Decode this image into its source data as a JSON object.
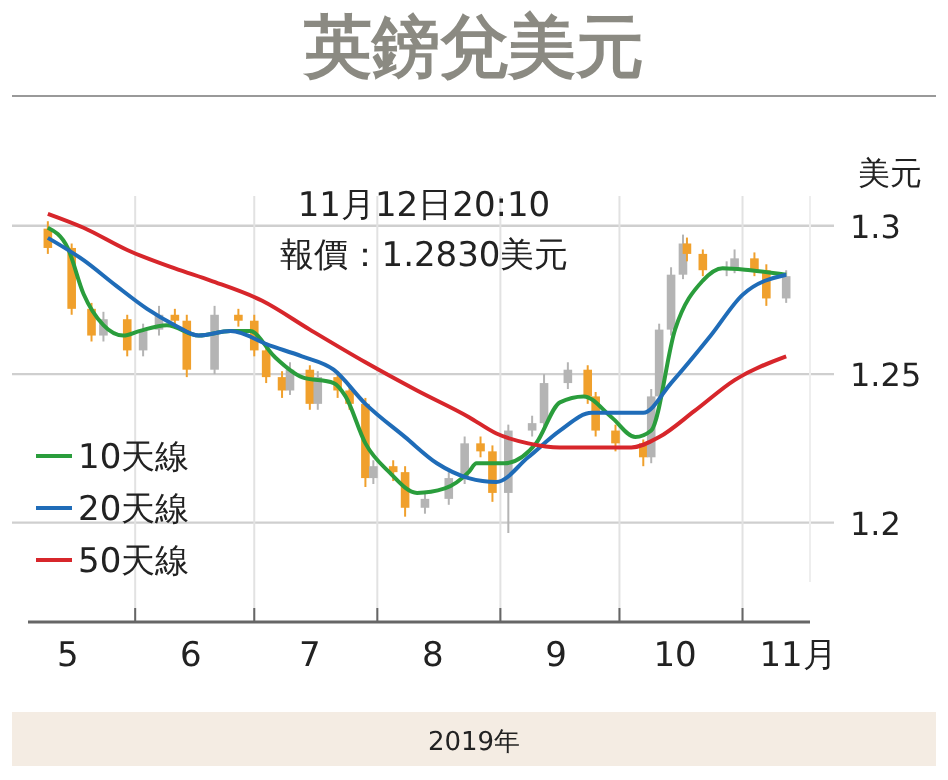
{
  "chart_data": {
    "type": "candlestick",
    "title": "英鎊兌美元",
    "ylabel": "美元",
    "xlabel": "2019年",
    "annotations": [
      "11月12日20:10",
      "報價：1.2830美元"
    ],
    "x": [
      "2019-05-10",
      "2019-05-16",
      "2019-05-21",
      "2019-05-24",
      "2019-05-30",
      "2019-06-03",
      "2019-06-07",
      "2019-06-11",
      "2019-06-14",
      "2019-06-21",
      "2019-06-27",
      "2019-07-01",
      "2019-07-04",
      "2019-07-08",
      "2019-07-10",
      "2019-07-15",
      "2019-07-17",
      "2019-07-22",
      "2019-07-25",
      "2019-07-29",
      "2019-07-31",
      "2019-08-05",
      "2019-08-08",
      "2019-08-13",
      "2019-08-19",
      "2019-08-23",
      "2019-08-27",
      "2019-08-30",
      "2019-09-03",
      "2019-09-09",
      "2019-09-12",
      "2019-09-18",
      "2019-09-23",
      "2019-09-25",
      "2019-09-30",
      "2019-10-07",
      "2019-10-09",
      "2019-10-11",
      "2019-10-14",
      "2019-10-17",
      "2019-10-18",
      "2019-10-22",
      "2019-10-28",
      "2019-10-30",
      "2019-11-04",
      "2019-11-07",
      "2019-11-12"
    ],
    "ohlc": [
      [
        1.299,
        1.3015,
        1.2905,
        1.2925
      ],
      [
        1.2925,
        1.294,
        1.27,
        1.272
      ],
      [
        1.272,
        1.274,
        1.261,
        1.263
      ],
      [
        1.263,
        1.271,
        1.261,
        1.2685
      ],
      [
        1.2685,
        1.27,
        1.256,
        1.258
      ],
      [
        1.258,
        1.267,
        1.256,
        1.265
      ],
      [
        1.265,
        1.273,
        1.263,
        1.27
      ],
      [
        1.27,
        1.272,
        1.266,
        1.268
      ],
      [
        1.268,
        1.27,
        1.249,
        1.2515
      ],
      [
        1.2515,
        1.273,
        1.25,
        1.27
      ],
      [
        1.27,
        1.272,
        1.266,
        1.268
      ],
      [
        1.268,
        1.27,
        1.256,
        1.258
      ],
      [
        1.258,
        1.26,
        1.247,
        1.249
      ],
      [
        1.249,
        1.251,
        1.242,
        1.2445
      ],
      [
        1.2445,
        1.254,
        1.243,
        1.2515
      ],
      [
        1.2515,
        1.253,
        1.238,
        1.24
      ],
      [
        1.24,
        1.251,
        1.238,
        1.249
      ],
      [
        1.249,
        1.251,
        1.242,
        1.2445
      ],
      [
        1.2445,
        1.246,
        1.238,
        1.24
      ],
      [
        1.24,
        1.242,
        1.212,
        1.215
      ],
      [
        1.215,
        1.221,
        1.213,
        1.219
      ],
      [
        1.219,
        1.221,
        1.214,
        1.217
      ],
      [
        1.217,
        1.219,
        1.202,
        1.205
      ],
      [
        1.205,
        1.21,
        1.203,
        1.208
      ],
      [
        1.208,
        1.217,
        1.206,
        1.215
      ],
      [
        1.215,
        1.229,
        1.213,
        1.2267
      ],
      [
        1.2267,
        1.229,
        1.222,
        1.224
      ],
      [
        1.224,
        1.226,
        1.207,
        1.21
      ],
      [
        1.21,
        1.233,
        1.1965,
        1.231
      ],
      [
        1.231,
        1.236,
        1.229,
        1.2335
      ],
      [
        1.2335,
        1.25,
        1.232,
        1.247
      ],
      [
        1.247,
        1.254,
        1.245,
        1.2515
      ],
      [
        1.2515,
        1.253,
        1.24,
        1.2425
      ],
      [
        1.2425,
        1.244,
        1.229,
        1.231
      ],
      [
        1.231,
        1.233,
        1.224,
        1.2267
      ],
      [
        1.2267,
        1.228,
        1.219,
        1.222
      ],
      [
        1.222,
        1.245,
        1.22,
        1.2425
      ],
      [
        1.2425,
        1.267,
        1.241,
        1.265
      ],
      [
        1.265,
        1.286,
        1.263,
        1.2835
      ],
      [
        1.2835,
        1.297,
        1.282,
        1.294
      ],
      [
        1.294,
        1.296,
        1.288,
        1.2905
      ],
      [
        1.2905,
        1.292,
        1.283,
        1.285
      ],
      [
        1.285,
        1.288,
        1.283,
        1.2857
      ],
      [
        1.2857,
        1.292,
        1.284,
        1.289
      ],
      [
        1.289,
        1.291,
        1.283,
        1.285
      ],
      [
        1.285,
        1.287,
        1.273,
        1.2755
      ],
      [
        1.2755,
        1.285,
        1.274,
        1.283
      ]
    ],
    "colors": [
      "#f0a02c",
      "#f0a02c",
      "#f0a02c",
      "#b4b4b4",
      "#f0a02c",
      "#b4b4b4",
      "#b4b4b4",
      "#f0a02c",
      "#f0a02c",
      "#b4b4b4",
      "#f0a02c",
      "#f0a02c",
      "#f0a02c",
      "#f0a02c",
      "#b4b4b4",
      "#f0a02c",
      "#b4b4b4",
      "#f0a02c",
      "#f0a02c",
      "#f0a02c",
      "#b4b4b4",
      "#f0a02c",
      "#f0a02c",
      "#b4b4b4",
      "#b4b4b4",
      "#b4b4b4",
      "#f0a02c",
      "#f0a02c",
      "#b4b4b4",
      "#b4b4b4",
      "#b4b4b4",
      "#b4b4b4",
      "#f0a02c",
      "#f0a02c",
      "#f0a02c",
      "#f0a02c",
      "#b4b4b4",
      "#b4b4b4",
      "#b4b4b4",
      "#b4b4b4",
      "#f0a02c",
      "#f0a02c",
      "#b4b4b4",
      "#b4b4b4",
      "#f0a02c",
      "#f0a02c",
      "#b4b4b4"
    ],
    "series": [
      {
        "name": "10天線",
        "type": "line",
        "color": "#2a9d3c",
        "x": [
          "2019-05-10",
          "2019-05-15",
          "2019-05-19",
          "2019-05-24",
          "2019-05-29",
          "2019-06-02",
          "2019-06-09",
          "2019-06-17",
          "2019-06-25",
          "2019-06-30",
          "2019-07-06",
          "2019-07-13",
          "2019-07-21",
          "2019-07-24",
          "2019-07-29",
          "2019-08-04",
          "2019-08-11",
          "2019-08-18",
          "2019-08-24",
          "2019-08-26",
          "2019-09-02",
          "2019-09-10",
          "2019-09-16",
          "2019-09-22",
          "2019-09-29",
          "2019-10-05",
          "2019-10-09",
          "2019-10-15",
          "2019-10-22",
          "2019-10-27",
          "2019-11-03",
          "2019-11-12"
        ],
        "values": [
          1.2993,
          1.2925,
          1.277,
          1.2665,
          1.263,
          1.2645,
          1.2665,
          1.263,
          1.2645,
          1.2645,
          1.256,
          1.249,
          1.247,
          1.2425,
          1.2267,
          1.217,
          1.21,
          1.2115,
          1.217,
          1.22,
          1.22,
          1.2267,
          1.2405,
          1.2425,
          1.2355,
          1.2288,
          1.231,
          1.265,
          1.2815,
          1.2857,
          1.285,
          1.2835
        ]
      },
      {
        "name": "20天線",
        "type": "line",
        "color": "#1f6cb8",
        "x": [
          "2019-05-10",
          "2019-05-19",
          "2019-05-27",
          "2019-06-04",
          "2019-06-11",
          "2019-06-17",
          "2019-06-25",
          "2019-07-05",
          "2019-07-13",
          "2019-07-21",
          "2019-07-29",
          "2019-08-08",
          "2019-08-16",
          "2019-08-24",
          "2019-08-31",
          "2019-09-08",
          "2019-09-16",
          "2019-09-24",
          "2019-10-01",
          "2019-10-07",
          "2019-10-14",
          "2019-10-24",
          "2019-11-01",
          "2019-11-12"
        ],
        "values": [
          1.2959,
          1.2884,
          1.28,
          1.272,
          1.2665,
          1.263,
          1.2645,
          1.2596,
          1.256,
          1.2515,
          1.24,
          1.2288,
          1.22,
          1.215,
          1.2137,
          1.222,
          1.231,
          1.237,
          1.237,
          1.237,
          1.247,
          1.263,
          1.2767,
          1.2835
        ]
      },
      {
        "name": "50天線",
        "type": "line",
        "color": "#d7262b",
        "x": [
          "2019-05-10",
          "2019-05-19",
          "2019-05-30",
          "2019-06-11",
          "2019-06-20",
          "2019-07-03",
          "2019-07-15",
          "2019-07-29",
          "2019-08-11",
          "2019-08-24",
          "2019-08-31",
          "2019-09-08",
          "2019-09-16",
          "2019-09-24",
          "2019-10-04",
          "2019-10-11",
          "2019-10-20",
          "2019-10-30",
          "2019-11-12"
        ],
        "values": [
          1.304,
          1.2993,
          1.2918,
          1.2856,
          1.2815,
          1.2747,
          1.265,
          1.254,
          1.2445,
          1.2356,
          1.23,
          1.2267,
          1.2253,
          1.2253,
          1.2253,
          1.2288,
          1.2377,
          1.248,
          1.256
        ]
      }
    ],
    "xlim": [
      "2019-05-05",
      "2019-11-18"
    ],
    "xticks": [
      {
        "value": "2019-05-15",
        "label": "5"
      },
      {
        "value": "2019-06-15",
        "label": "6"
      },
      {
        "value": "2019-07-15",
        "label": "7"
      },
      {
        "value": "2019-08-15",
        "label": "8"
      },
      {
        "value": "2019-09-15",
        "label": "9"
      },
      {
        "value": "2019-10-15",
        "label": "10"
      },
      {
        "value": "2019-11-15",
        "label": "11月"
      },
      {
        "value": "2019-06-01",
        "label": null
      },
      {
        "value": "2019-07-01",
        "label": null
      },
      {
        "value": "2019-08-01",
        "label": null
      },
      {
        "value": "2019-09-01",
        "label": null
      },
      {
        "value": "2019-10-01",
        "label": null
      },
      {
        "value": "2019-11-01",
        "label": null
      }
    ],
    "ylim": [
      1.18,
      1.31
    ],
    "yticks": [
      1.2,
      1.25,
      1.3
    ],
    "grid": true,
    "legend": "bottom left",
    "line_style": "solid",
    "marker": "none"
  }
}
